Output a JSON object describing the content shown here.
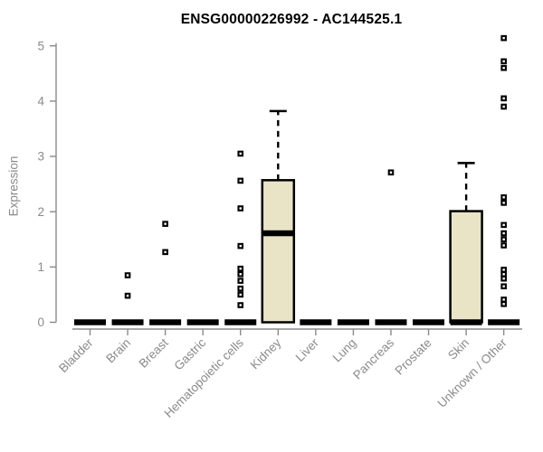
{
  "chart_data": {
    "type": "boxplot",
    "title": "ENSG00000226992 - AC144525.1",
    "ylabel": "Expression",
    "ylim": [
      0,
      5
    ],
    "yticks": [
      0,
      1,
      2,
      3,
      4,
      5
    ],
    "grid": false,
    "legend": "none",
    "colors": {
      "box_fill": "#EAE4C7",
      "box_border": "#000000",
      "median": "#000000",
      "outlier": "#000000",
      "axis": "#8a8a8a",
      "tick_text": "#8a8a8a",
      "title_text": "#000000",
      "background": "#ffffff"
    },
    "categories": [
      "Bladder",
      "Brain",
      "Breast",
      "Gastric",
      "Hematopoietic cells",
      "Kidney",
      "Liver",
      "Lung",
      "Pancreas",
      "Prostate",
      "Skin",
      "Unknown / Other"
    ],
    "boxes": [
      {
        "category": "Bladder",
        "q1": 0,
        "median": 0,
        "q3": 0,
        "whisker_low": 0,
        "whisker_high": 0,
        "outliers": []
      },
      {
        "category": "Brain",
        "q1": 0,
        "median": 0,
        "q3": 0,
        "whisker_low": 0,
        "whisker_high": 0,
        "outliers": [
          0.85,
          0.48
        ]
      },
      {
        "category": "Breast",
        "q1": 0,
        "median": 0,
        "q3": 0,
        "whisker_low": 0,
        "whisker_high": 0,
        "outliers": [
          1.78,
          1.27
        ]
      },
      {
        "category": "Gastric",
        "q1": 0,
        "median": 0,
        "q3": 0,
        "whisker_low": 0,
        "whisker_high": 0,
        "outliers": []
      },
      {
        "category": "Hematopoietic cells",
        "q1": 0,
        "median": 0,
        "q3": 0,
        "whisker_low": 0,
        "whisker_high": 0,
        "outliers": [
          3.05,
          2.56,
          2.06,
          1.38,
          0.97,
          0.87,
          0.75,
          0.61,
          0.5,
          0.31
        ]
      },
      {
        "category": "Kidney",
        "q1": 0,
        "median": 1.61,
        "q3": 2.57,
        "whisker_low": 0,
        "whisker_high": 3.82,
        "outliers": []
      },
      {
        "category": "Liver",
        "q1": 0,
        "median": 0,
        "q3": 0,
        "whisker_low": 0,
        "whisker_high": 0,
        "outliers": []
      },
      {
        "category": "Lung",
        "q1": 0,
        "median": 0,
        "q3": 0,
        "whisker_low": 0,
        "whisker_high": 0,
        "outliers": []
      },
      {
        "category": "Pancreas",
        "q1": 0,
        "median": 0,
        "q3": 0,
        "whisker_low": 0,
        "whisker_high": 0,
        "outliers": [
          2.71
        ]
      },
      {
        "category": "Prostate",
        "q1": 0,
        "median": 0,
        "q3": 0,
        "whisker_low": 0,
        "whisker_high": 0,
        "outliers": []
      },
      {
        "category": "Skin",
        "q1": 0,
        "median": 0,
        "q3": 2.01,
        "whisker_low": 0,
        "whisker_high": 2.88,
        "outliers": []
      },
      {
        "category": "Unknown / Other",
        "q1": 0,
        "median": 0,
        "q3": 0,
        "whisker_low": 0,
        "whisker_high": 0,
        "outliers": [
          5.14,
          4.72,
          4.6,
          4.05,
          3.9,
          2.26,
          2.16,
          1.76,
          1.61,
          1.5,
          1.39,
          0.95,
          0.87,
          0.79,
          0.65,
          0.41,
          0.33
        ]
      }
    ]
  }
}
